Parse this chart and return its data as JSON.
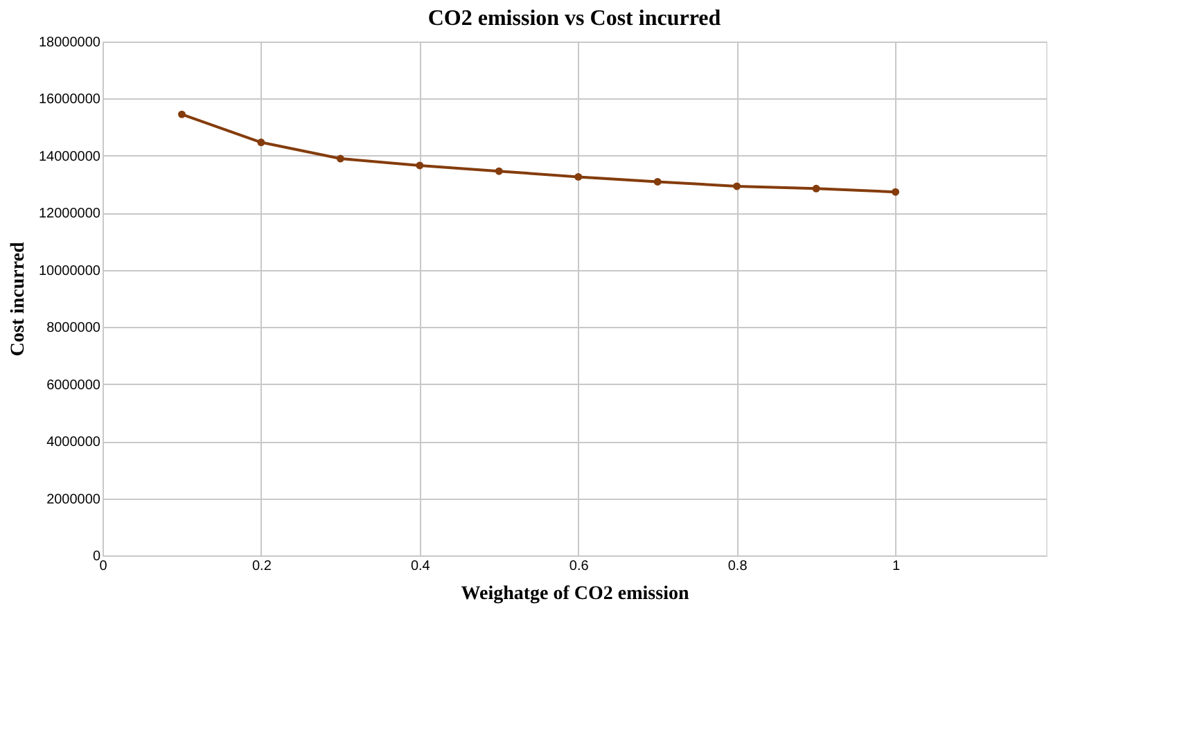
{
  "chart_data": {
    "type": "line",
    "title": "CO2 emission vs Cost incurred",
    "xlabel": "Weighatge of CO2 emission",
    "ylabel": "Cost incurred",
    "x": [
      0.1,
      0.2,
      0.3,
      0.4,
      0.5,
      0.6,
      0.7,
      0.8,
      0.9,
      1.0
    ],
    "series": [
      {
        "color": "#843c0c",
        "values": [
          15450000,
          14470000,
          13900000,
          13660000,
          13460000,
          13260000,
          13090000,
          12930000,
          12850000,
          12730000
        ]
      }
    ],
    "xlim": [
      0,
      1.19
    ],
    "xticks": [
      0,
      0.2,
      0.4,
      0.6,
      0.8,
      1
    ],
    "ylim": [
      0,
      18000000
    ],
    "yticks": [
      0,
      2000000,
      4000000,
      6000000,
      8000000,
      10000000,
      12000000,
      14000000,
      16000000,
      18000000
    ],
    "grid": true,
    "marker": "circle"
  }
}
